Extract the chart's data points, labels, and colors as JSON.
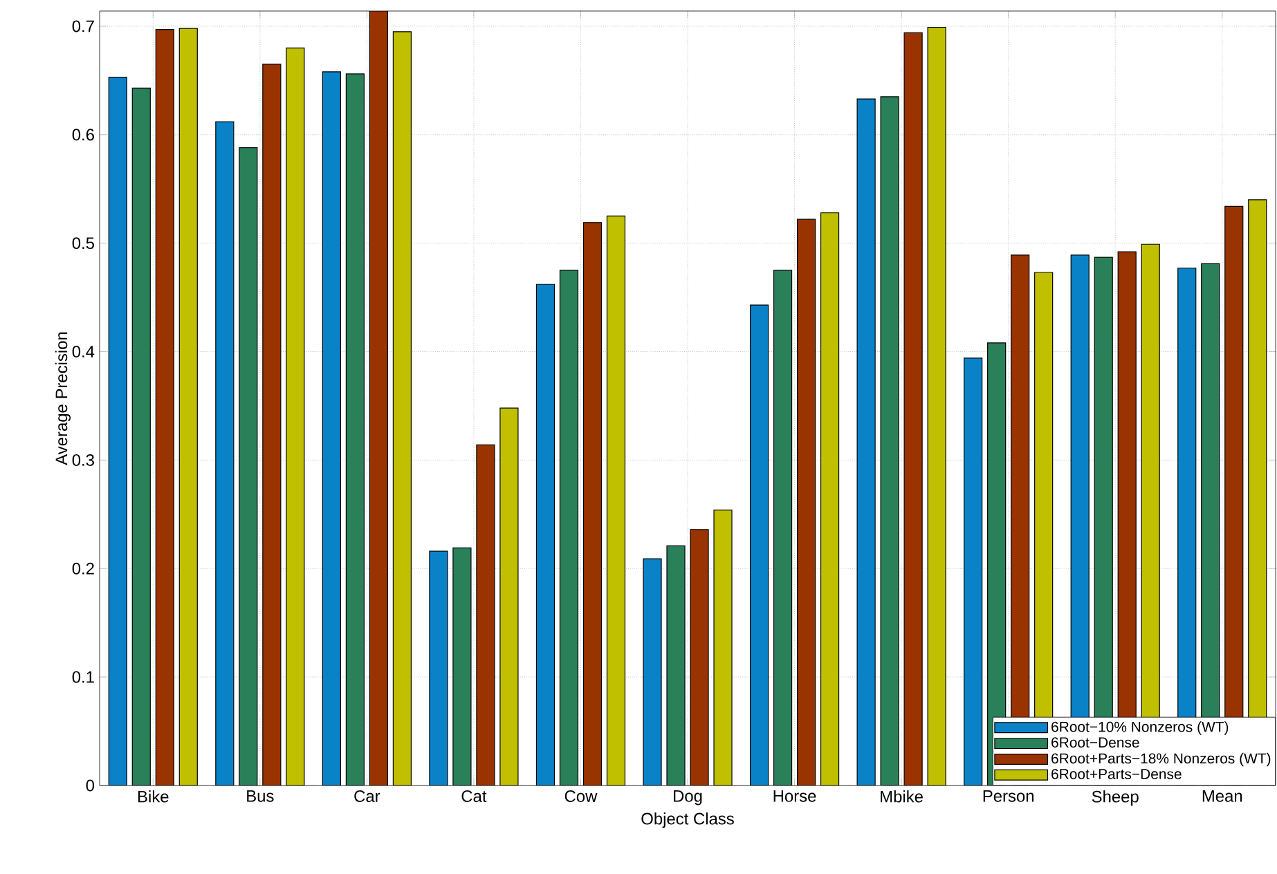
{
  "chart_data": {
    "type": "bar",
    "xlabel": "Object Class",
    "ylabel": "Average Precision",
    "categories": [
      "Bike",
      "Bus",
      "Car",
      "Cat",
      "Cow",
      "Dog",
      "Horse",
      "Mbike",
      "Person",
      "Sheep",
      "Mean"
    ],
    "series": [
      {
        "name": "6Root−10% Nonzeros (WT)",
        "color": "#0a82c8",
        "values": [
          0.653,
          0.612,
          0.658,
          0.216,
          0.462,
          0.209,
          0.443,
          0.633,
          0.394,
          0.489,
          0.477
        ]
      },
      {
        "name": "6Root−Dense",
        "color": "#2a8059",
        "values": [
          0.643,
          0.588,
          0.656,
          0.219,
          0.475,
          0.221,
          0.475,
          0.635,
          0.408,
          0.487,
          0.481
        ]
      },
      {
        "name": "6Root+Parts−18% Nonzeros (WT)",
        "color": "#993300",
        "values": [
          0.697,
          0.665,
          0.714,
          0.314,
          0.519,
          0.236,
          0.522,
          0.694,
          0.489,
          0.492,
          0.534
        ]
      },
      {
        "name": "6Root+Parts−Dense",
        "color": "#c0c000",
        "values": [
          0.698,
          0.68,
          0.695,
          0.348,
          0.525,
          0.254,
          0.528,
          0.699,
          0.473,
          0.499,
          0.54
        ]
      }
    ],
    "ylim": [
      0,
      0.714
    ],
    "yticks": [
      0,
      0.1,
      0.2,
      0.3,
      0.4,
      0.5,
      0.6,
      0.7
    ],
    "grid": true,
    "legend": "bottom right"
  }
}
